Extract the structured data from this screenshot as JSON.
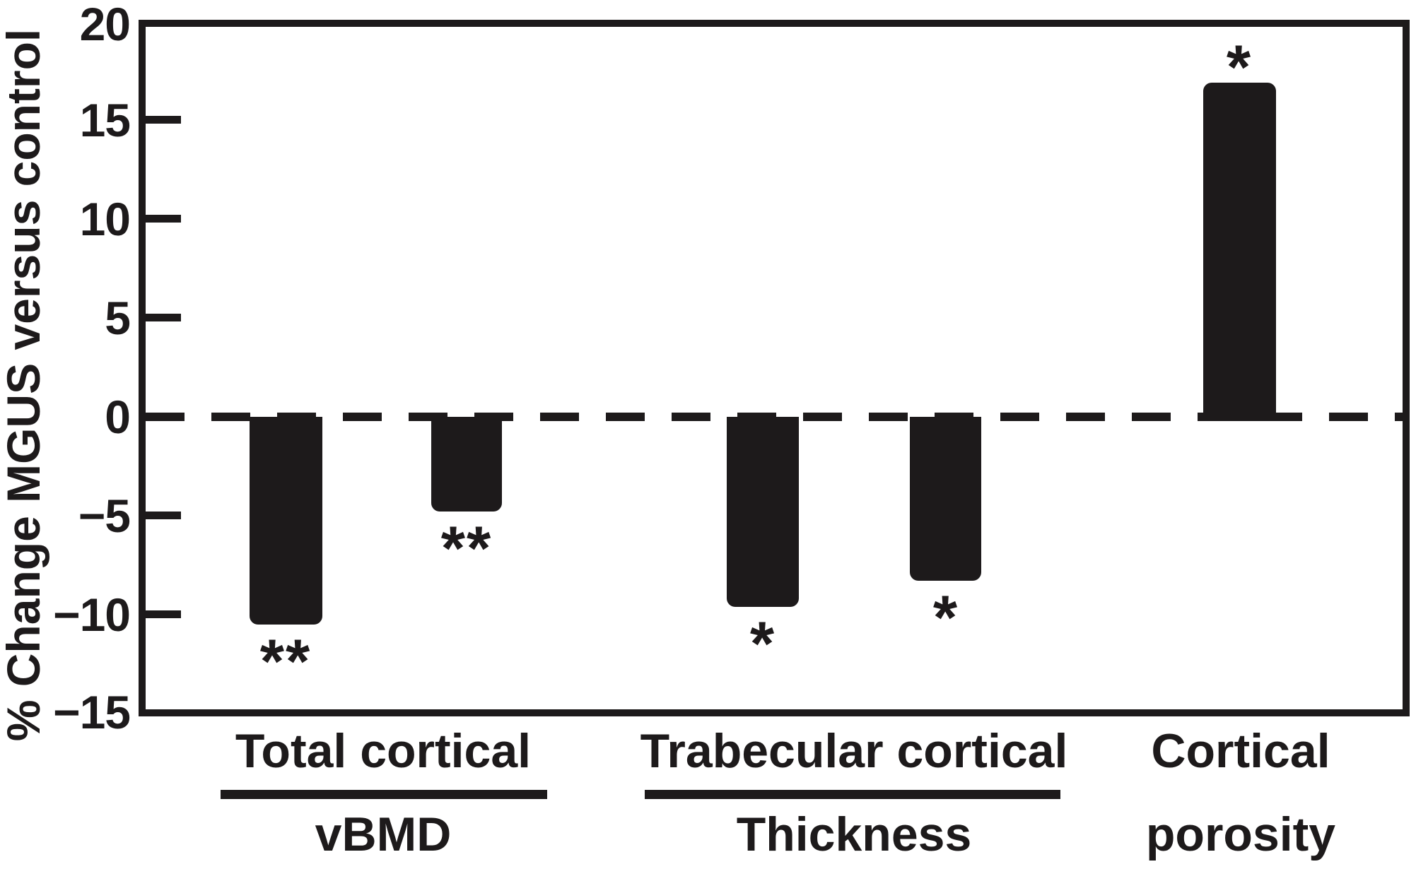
{
  "chart_data": {
    "type": "bar",
    "title": "",
    "ylabel": "% Change MGUS versus control",
    "ylim": [
      -15,
      20
    ],
    "yticks": [
      20,
      15,
      10,
      5,
      0,
      -5,
      -10,
      -15
    ],
    "ytick_labels": [
      "20",
      "15",
      "10",
      "5",
      "0",
      "−5",
      "−10",
      "−15"
    ],
    "zero_line_style": "dashed",
    "bar_color": "#1d1a1b",
    "grid": false,
    "legend": false,
    "groups": [
      {
        "line1": "Total cortical",
        "line2": "vBMD",
        "underline": true,
        "bars": [
          {
            "value": -10.5,
            "sig": "**"
          },
          {
            "value": -4.8,
            "sig": "**"
          }
        ]
      },
      {
        "line1": "Trabecular cortical",
        "line2": "Thickness",
        "underline": true,
        "bars": [
          {
            "value": -9.6,
            "sig": "*"
          },
          {
            "value": -8.3,
            "sig": "*"
          }
        ]
      },
      {
        "line1": "Cortical",
        "line2": "porosity",
        "underline": false,
        "bars": [
          {
            "value": 16.9,
            "sig": "*"
          }
        ]
      }
    ]
  }
}
